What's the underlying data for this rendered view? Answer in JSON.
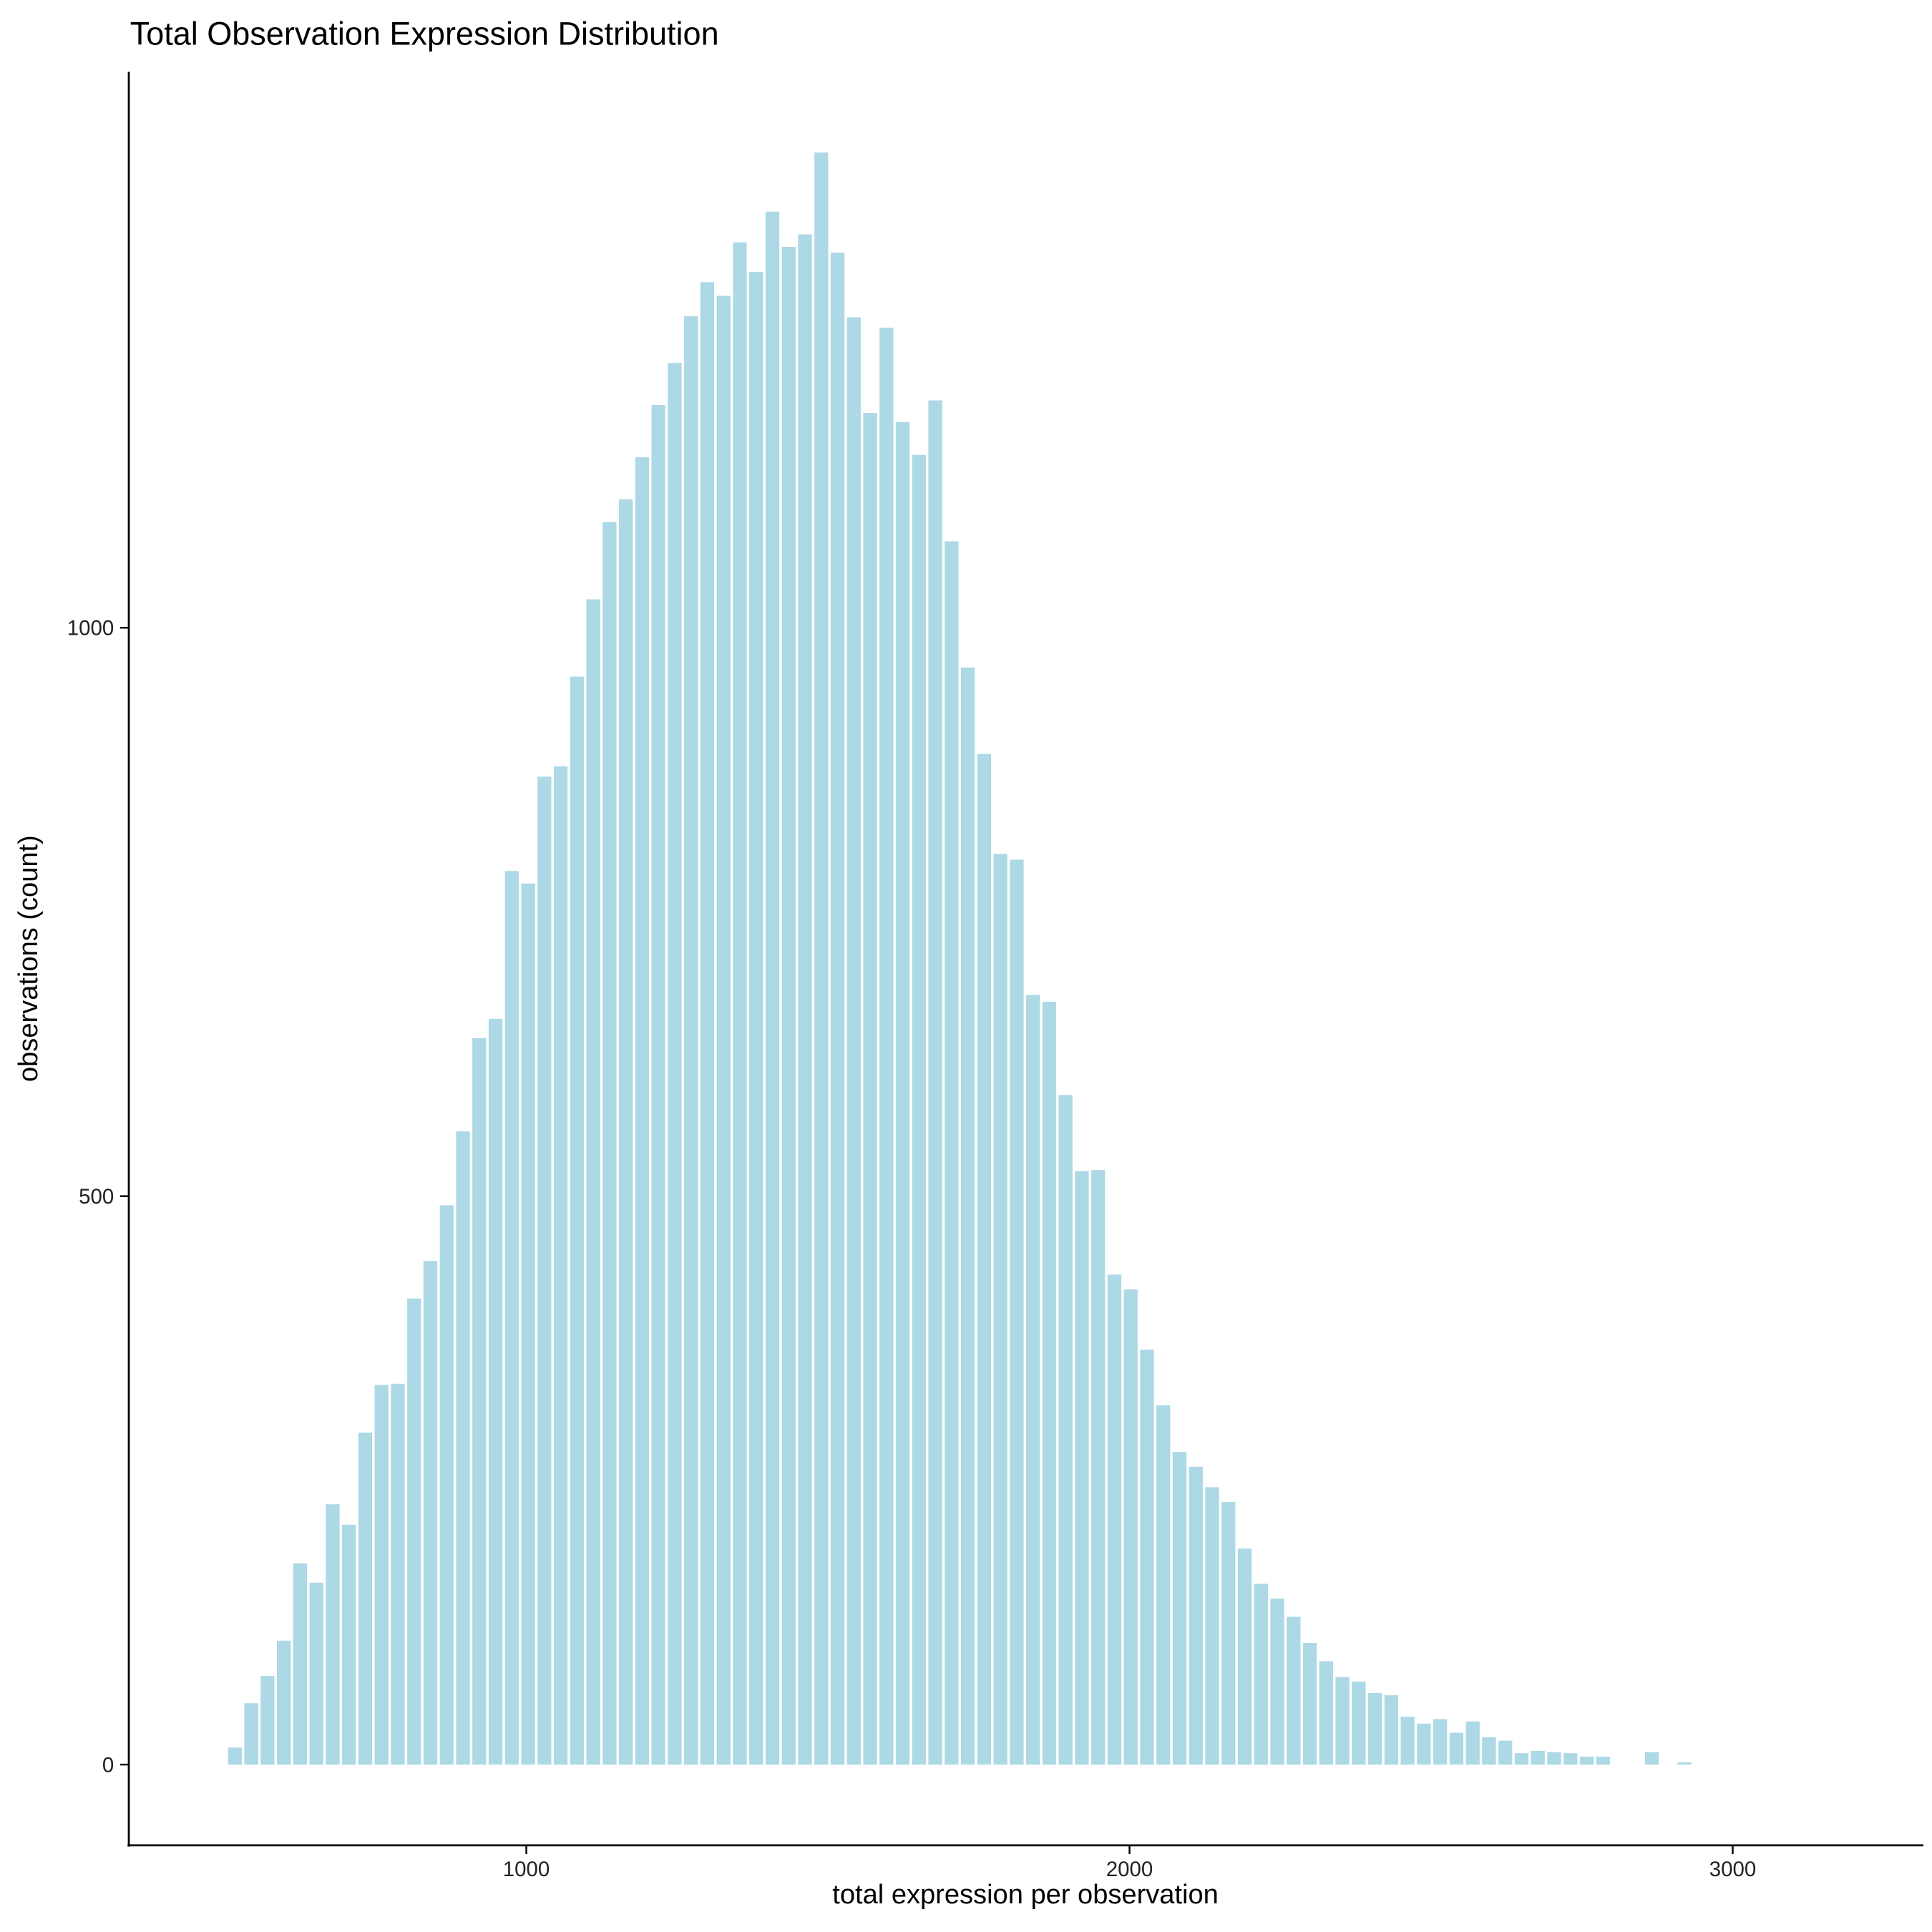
{
  "chart_data": {
    "type": "bar",
    "title": "Total Observation Expression Distribution",
    "xlabel": "total expression per observation",
    "ylabel": "observations (count)",
    "xlim": [
      341,
      3316
    ],
    "ylim": [
      -71,
      1489
    ],
    "xticks": [
      1000,
      2000,
      3000
    ],
    "yticks": [
      0,
      500,
      1000
    ],
    "grid": false,
    "legend": "none",
    "bar_color": "#ADD8E6",
    "bin_centers_start": 517,
    "bin_step": 27,
    "values": [
      15,
      54,
      78,
      109,
      177,
      160,
      229,
      211,
      292,
      334,
      335,
      410,
      443,
      492,
      557,
      639,
      656,
      786,
      775,
      869,
      878,
      957,
      1025,
      1093,
      1113,
      1150,
      1196,
      1233,
      1274,
      1304,
      1292,
      1339,
      1313,
      1366,
      1335,
      1346,
      1418,
      1330,
      1273,
      1189,
      1264,
      1181,
      1152,
      1200,
      1076,
      965,
      889,
      801,
      796,
      677,
      671,
      589,
      522,
      523,
      431,
      418,
      365,
      316,
      275,
      262,
      244,
      231,
      190,
      159,
      146,
      130,
      107,
      91,
      77,
      73,
      63,
      61,
      42,
      36,
      40,
      28,
      38,
      24,
      21,
      10,
      12,
      11,
      10,
      7,
      7,
      0,
      0,
      11,
      0,
      2
    ]
  }
}
